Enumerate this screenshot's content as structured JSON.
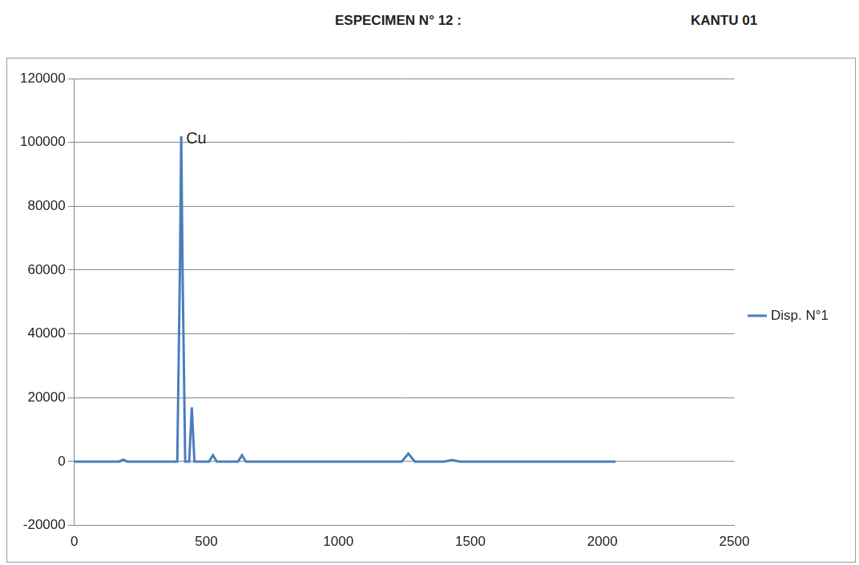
{
  "chart_data": {
    "type": "line",
    "title": "ESPECIMEN N° 12 :",
    "subtitle": "KANTU 01",
    "x": [
      0,
      100,
      170,
      185,
      200,
      300,
      390,
      400,
      405,
      410,
      420,
      435,
      445,
      455,
      465,
      510,
      525,
      540,
      620,
      635,
      650,
      800,
      1000,
      1240,
      1265,
      1290,
      1400,
      1430,
      1460,
      1700,
      2000,
      2050
    ],
    "series": [
      {
        "name": "Disp. N°1",
        "color": "#4a7ebb",
        "values": [
          0,
          0,
          0,
          600,
          0,
          0,
          0,
          60000,
          102000,
          60000,
          0,
          0,
          17000,
          0,
          0,
          0,
          2000,
          0,
          0,
          2000,
          0,
          0,
          0,
          0,
          2500,
          0,
          0,
          500,
          0,
          0,
          0,
          0
        ]
      }
    ],
    "annotations": [
      {
        "text": "Cu",
        "x": 405,
        "y": 102000
      }
    ],
    "xlim": [
      0,
      2500
    ],
    "xticks": [
      0,
      500,
      1000,
      1500,
      2000,
      2500
    ],
    "ylim": [
      -20000,
      120000
    ],
    "yticks": [
      -20000,
      0,
      20000,
      40000,
      60000,
      80000,
      100000,
      120000
    ],
    "grid": true,
    "legend": "right"
  }
}
